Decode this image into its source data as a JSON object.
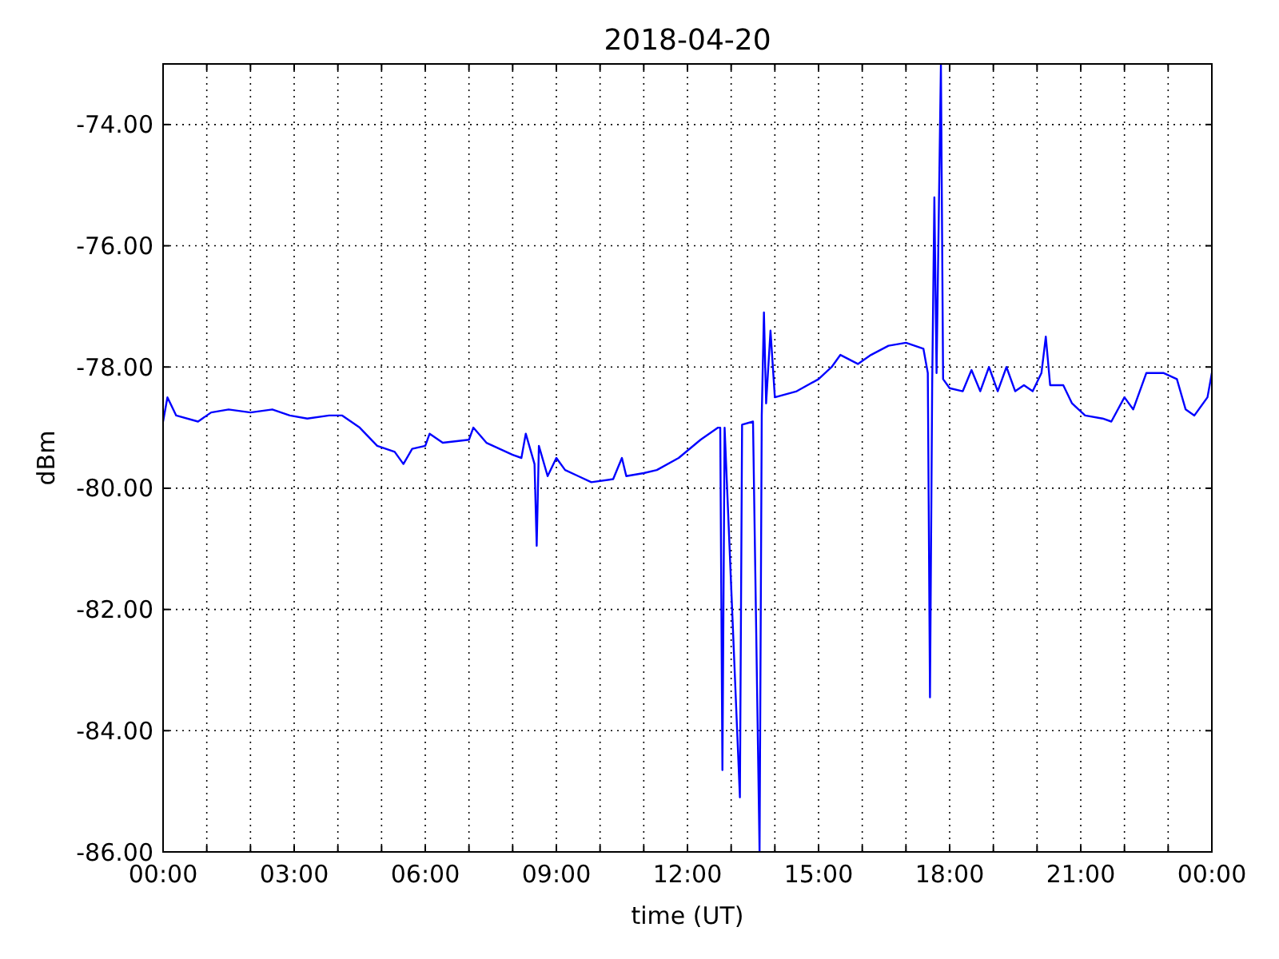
{
  "chart_data": {
    "type": "line",
    "title": "2018-04-20",
    "xlabel": "time (UT)",
    "ylabel": "dBm",
    "grid": true,
    "xlim": [
      0,
      24
    ],
    "ylim": [
      -86,
      -73
    ],
    "xticks": [
      {
        "value": 0,
        "label": "00:00"
      },
      {
        "value": 1,
        "label": null
      },
      {
        "value": 2,
        "label": null
      },
      {
        "value": 3,
        "label": "03:00"
      },
      {
        "value": 4,
        "label": null
      },
      {
        "value": 5,
        "label": null
      },
      {
        "value": 6,
        "label": "06:00"
      },
      {
        "value": 7,
        "label": null
      },
      {
        "value": 8,
        "label": null
      },
      {
        "value": 9,
        "label": "09:00"
      },
      {
        "value": 10,
        "label": null
      },
      {
        "value": 11,
        "label": null
      },
      {
        "value": 12,
        "label": "12:00"
      },
      {
        "value": 13,
        "label": null
      },
      {
        "value": 14,
        "label": null
      },
      {
        "value": 15,
        "label": "15:00"
      },
      {
        "value": 16,
        "label": null
      },
      {
        "value": 17,
        "label": null
      },
      {
        "value": 18,
        "label": "18:00"
      },
      {
        "value": 19,
        "label": null
      },
      {
        "value": 20,
        "label": null
      },
      {
        "value": 21,
        "label": "21:00"
      },
      {
        "value": 22,
        "label": null
      },
      {
        "value": 23,
        "label": null
      },
      {
        "value": 24,
        "label": "00:00"
      }
    ],
    "yticks": [
      {
        "value": -86,
        "label": "-86.00"
      },
      {
        "value": -84,
        "label": "-84.00"
      },
      {
        "value": -82,
        "label": "-82.00"
      },
      {
        "value": -80,
        "label": "-80.00"
      },
      {
        "value": -78,
        "label": "-78.00"
      },
      {
        "value": -76,
        "label": "-76.00"
      },
      {
        "value": -74,
        "label": "-74.00"
      }
    ],
    "series": [
      {
        "color": "#0000ff",
        "x": [
          0,
          0.1,
          0.3,
          0.8,
          1.1,
          1.5,
          2,
          2.5,
          2.9,
          3.3,
          3.8,
          4.1,
          4.5,
          4.9,
          5.3,
          5.5,
          5.7,
          6,
          6.1,
          6.4,
          7,
          7.1,
          7.4,
          8,
          8.2,
          8.3,
          8.5,
          8.55,
          8.6,
          8.8,
          9,
          9.2,
          9.5,
          9.8,
          10.3,
          10.5,
          10.6,
          11,
          11.3,
          11.8,
          12.3,
          12.7,
          12.75,
          12.8,
          12.85,
          13.2,
          13.25,
          13.5,
          13.65,
          13.7,
          13.75,
          13.8,
          13.9,
          14,
          14.5,
          15,
          15.3,
          15.5,
          15.9,
          16.2,
          16.6,
          17,
          17.4,
          17.5,
          17.55,
          17.6,
          17.65,
          17.7,
          17.8,
          17.85,
          18,
          18.3,
          18.5,
          18.7,
          18.9,
          19.1,
          19.3,
          19.5,
          19.7,
          19.9,
          20.1,
          20.2,
          20.3,
          20.6,
          20.8,
          21.1,
          21.5,
          21.7,
          22,
          22.2,
          22.5,
          22.9,
          23.2,
          23.4,
          23.6,
          23.9,
          24
        ],
        "values": [
          -78.9,
          -78.5,
          -78.8,
          -78.9,
          -78.75,
          -78.7,
          -78.75,
          -78.7,
          -78.8,
          -78.85,
          -78.8,
          -78.8,
          -79,
          -79.3,
          -79.4,
          -79.6,
          -79.35,
          -79.3,
          -79.1,
          -79.25,
          -79.2,
          -79,
          -79.25,
          -79.45,
          -79.5,
          -79.1,
          -79.6,
          -80.95,
          -79.3,
          -79.8,
          -79.5,
          -79.7,
          -79.8,
          -79.9,
          -79.85,
          -79.5,
          -79.8,
          -79.75,
          -79.7,
          -79.5,
          -79.2,
          -79,
          -79,
          -84.65,
          -79,
          -85.1,
          -78.95,
          -78.9,
          -86,
          -78.8,
          -77.1,
          -78.6,
          -77.4,
          -78.5,
          -78.4,
          -78.2,
          -78,
          -77.8,
          -77.95,
          -77.8,
          -77.65,
          -77.6,
          -77.7,
          -78.1,
          -83.45,
          -78.3,
          -75.2,
          -78.1,
          -73,
          -78.2,
          -78.35,
          -78.4,
          -78.05,
          -78.4,
          -78,
          -78.4,
          -78,
          -78.4,
          -78.3,
          -78.4,
          -78.1,
          -77.5,
          -78.3,
          -78.3,
          -78.6,
          -78.8,
          -78.85,
          -78.9,
          -78.5,
          -78.7,
          -78.1,
          -78.1,
          -78.2,
          -78.7,
          -78.8,
          -78.5,
          -78.1
        ]
      }
    ]
  }
}
